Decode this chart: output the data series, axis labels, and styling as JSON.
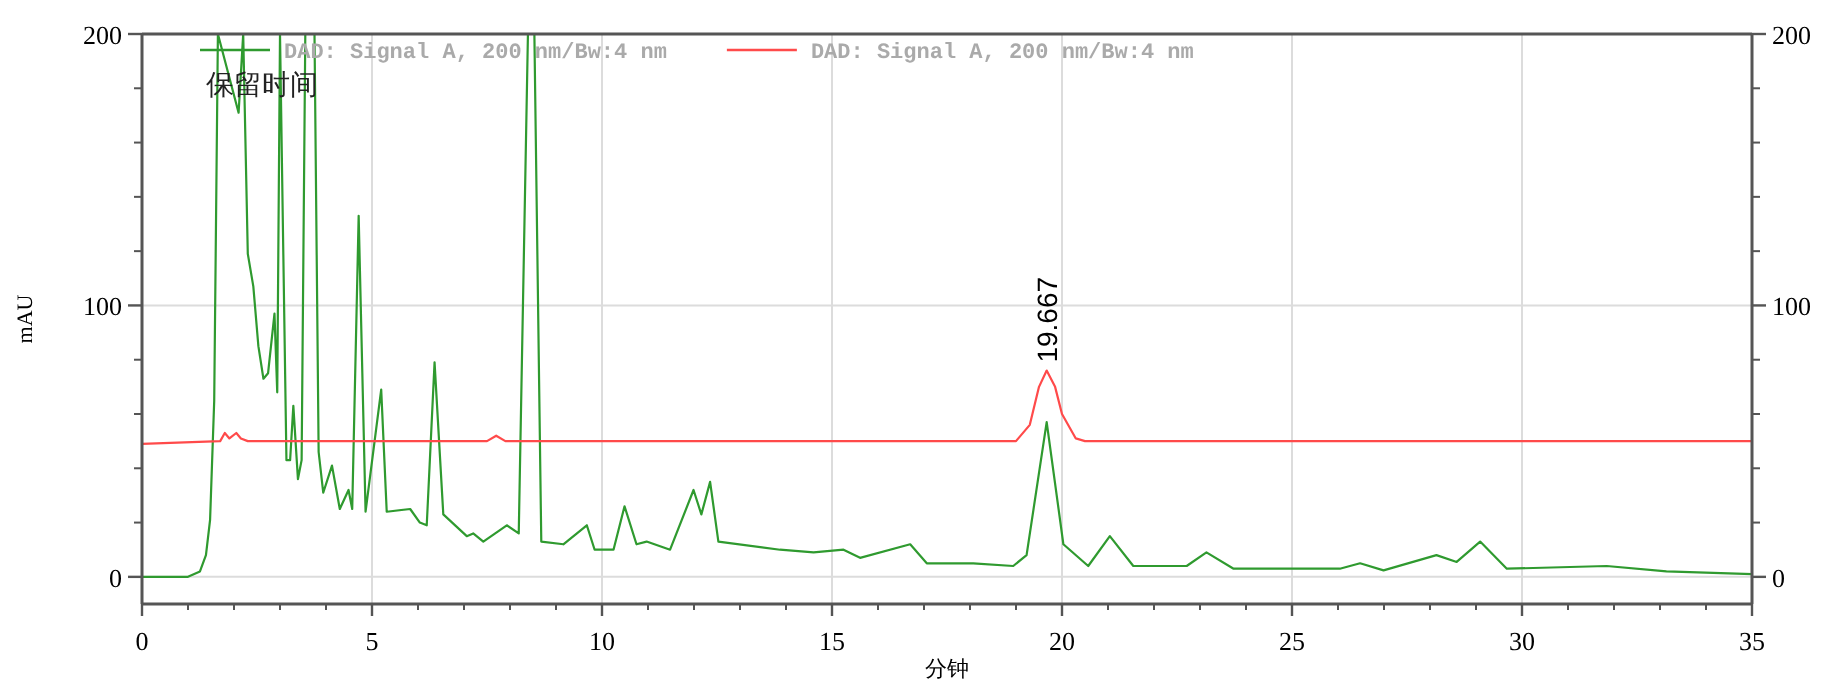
{
  "chart_data": {
    "type": "line",
    "xlabel": "分钟",
    "ylabel": "mAU",
    "xlim": [
      0,
      35
    ],
    "xticks": [
      0,
      5,
      10,
      15,
      20,
      25,
      30,
      35
    ],
    "ylim": [
      -10,
      200
    ],
    "yticks": [
      0,
      100,
      200
    ],
    "y2lim": [
      -10,
      200
    ],
    "y2ticks": [
      0,
      100,
      200
    ],
    "grid": true,
    "legend": "top left",
    "series": [
      {
        "name": "DAD: Signal A, 200 nm/Bw:4 nm",
        "color": "#2f9a2f",
        "x": [
          0,
          1.0,
          1.26,
          1.39,
          1.48,
          1.57,
          1.65,
          2.1,
          2.2,
          2.3,
          2.42,
          2.53,
          2.64,
          2.74,
          2.88,
          2.94,
          3.0,
          3.14,
          3.22,
          3.29,
          3.39,
          3.47,
          3.55,
          3.75,
          3.84,
          3.94,
          4.13,
          4.3,
          4.49,
          4.57,
          4.71,
          4.86,
          5.2,
          5.32,
          5.83,
          6.04,
          6.19,
          6.36,
          6.55,
          7.06,
          7.2,
          7.42,
          7.93,
          8.19,
          8.39,
          8.53,
          8.68,
          9.16,
          9.67,
          9.84,
          10.25,
          10.49,
          10.75,
          10.97,
          11.48,
          11.99,
          12.16,
          12.35,
          12.53,
          13.87,
          14.6,
          15.25,
          15.61,
          16.7,
          17.06,
          18.07,
          18.94,
          19.23,
          19.667,
          20.03,
          20.57,
          21.04,
          21.55,
          22.71,
          23.14,
          23.73,
          24.74,
          26.04,
          26.48,
          26.99,
          28.14,
          28.58,
          29.09,
          29.67,
          31.84,
          33.14,
          35
        ],
        "values": [
          0,
          0,
          2,
          8,
          21,
          65,
          200,
          171,
          200,
          119,
          107,
          85,
          73,
          75,
          97,
          68,
          200,
          43,
          43,
          63,
          36,
          43,
          200,
          200,
          46,
          31,
          41,
          25,
          32,
          25,
          133,
          24,
          69,
          24,
          25,
          20,
          19,
          79,
          23,
          15,
          16,
          13,
          19,
          16,
          200,
          200,
          13,
          12,
          19,
          10,
          10,
          26,
          12,
          13,
          10,
          32,
          23,
          35,
          13,
          10,
          9,
          10,
          7,
          12,
          5,
          5,
          4,
          8,
          57,
          12,
          4,
          15,
          4,
          4,
          9,
          3,
          3,
          3,
          5,
          2.4,
          8,
          5.5,
          13,
          3,
          4,
          2,
          1
        ]
      },
      {
        "name": "DAD: Signal A, 200 nm/Bw:4 nm",
        "color": "#ff4a4a",
        "x": [
          0,
          1.7,
          1.8,
          1.9,
          2.05,
          2.15,
          2.3,
          7.5,
          7.7,
          7.9,
          19.0,
          19.3,
          19.5,
          19.667,
          19.85,
          20.0,
          20.3,
          20.5,
          35
        ],
        "values": [
          49,
          50,
          53,
          51,
          53,
          51,
          50,
          50,
          52,
          50,
          50,
          56,
          70,
          76,
          70,
          60,
          51,
          50,
          50
        ]
      }
    ],
    "annotations": [
      {
        "text": "19.667",
        "x": 19.667,
        "y": 76
      },
      "保留时间"
    ]
  }
}
